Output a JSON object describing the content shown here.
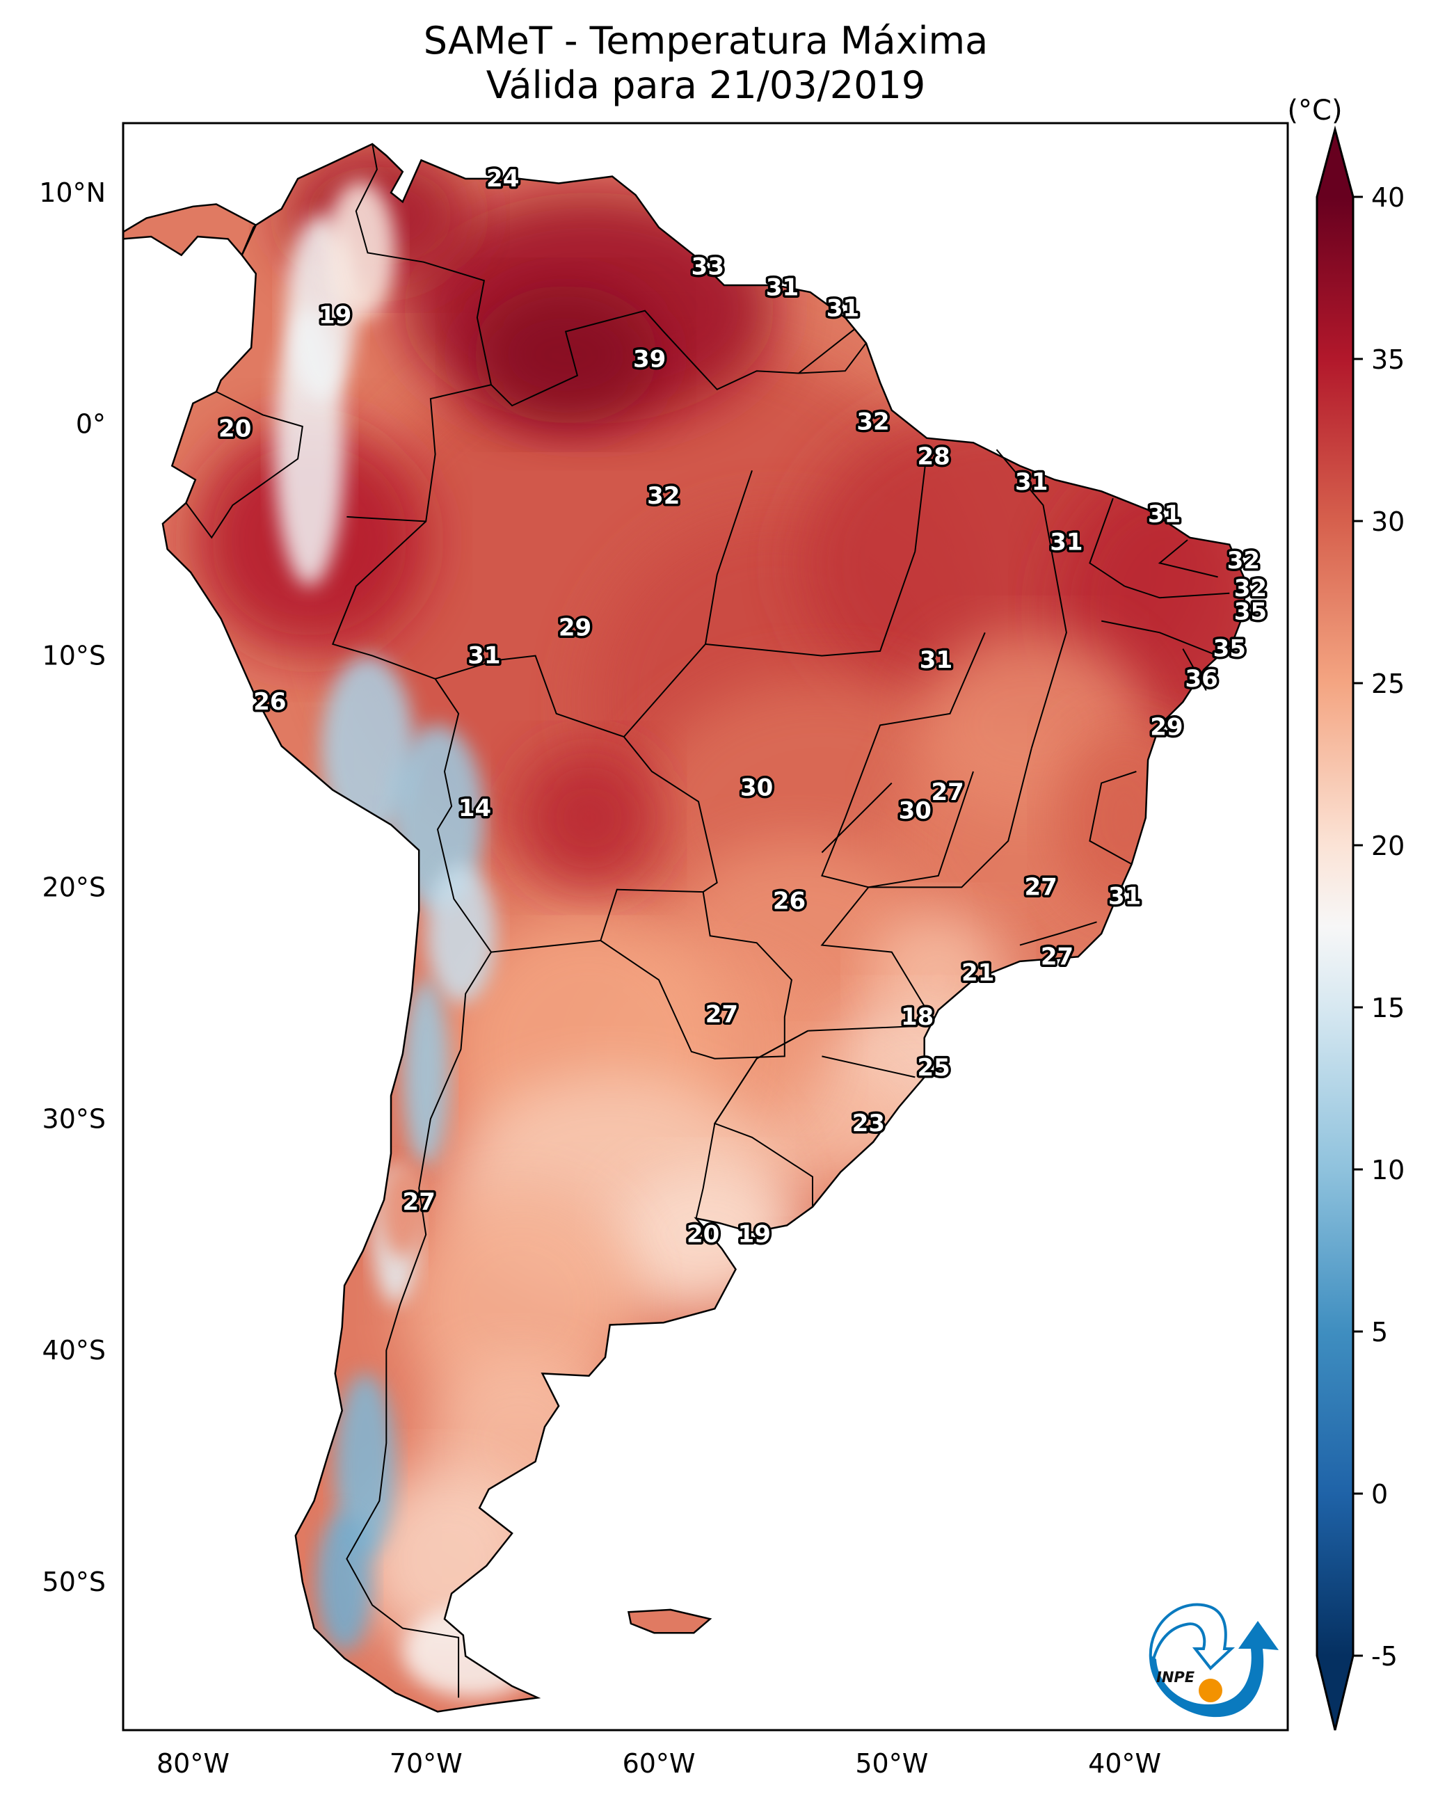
{
  "header": {
    "title_line1": "SAMeT - Temperatura Máxima",
    "title_line2": "Válida para 21/03/2019"
  },
  "logo": {
    "text": "INPE",
    "colors": {
      "blue": "#0a7abf",
      "orange": "#f39200"
    }
  },
  "chart_data": {
    "type": "heatmap",
    "title": "SAMeT - Temperatura Máxima",
    "subtitle": "Válida para 21/03/2019",
    "variable": "Maximum temperature",
    "units": "(°C)",
    "region": "South America",
    "x_axis": {
      "label": "",
      "range": [
        -83,
        -33
      ],
      "ticks": [
        -80,
        -70,
        -60,
        -50,
        -40
      ],
      "tick_labels": [
        "80°W",
        "70°W",
        "60°W",
        "50°W",
        "40°W"
      ]
    },
    "y_axis": {
      "label": "",
      "range": [
        -56.4,
        13.0
      ],
      "ticks": [
        10,
        0,
        -10,
        -20,
        -30,
        -40,
        -50
      ],
      "tick_labels": [
        "10°N",
        "0°",
        "10°S",
        "20°S",
        "30°S",
        "40°S",
        "50°S"
      ]
    },
    "colorbar": {
      "label": "(°C)",
      "cmap": "RdBu_r",
      "range": [
        -5,
        40
      ],
      "extend": "both",
      "ticks": [
        -5,
        0,
        5,
        10,
        15,
        20,
        25,
        30,
        35,
        40
      ],
      "tick_labels": [
        "-5",
        "0",
        "5",
        "10",
        "15",
        "20",
        "25",
        "30",
        "35",
        "40"
      ],
      "placement": "right",
      "stops": [
        {
          "v": -5,
          "c": "#053061"
        },
        {
          "v": 0,
          "c": "#1f63a8"
        },
        {
          "v": 5,
          "c": "#3f8ec0"
        },
        {
          "v": 10,
          "c": "#8fc2dd"
        },
        {
          "v": 15,
          "c": "#d7e8f1"
        },
        {
          "v": 17.5,
          "c": "#f7f7f7"
        },
        {
          "v": 20,
          "c": "#fbe3d6"
        },
        {
          "v": 25,
          "c": "#f4a582"
        },
        {
          "v": 30,
          "c": "#d6604d"
        },
        {
          "v": 35,
          "c": "#b2182b"
        },
        {
          "v": 40,
          "c": "#67001f"
        }
      ]
    },
    "point_labels": [
      {
        "value": 24,
        "lon": -66.7,
        "lat": 10.6
      },
      {
        "value": 33,
        "lon": -57.9,
        "lat": 6.8
      },
      {
        "value": 31,
        "lon": -54.7,
        "lat": 5.9
      },
      {
        "value": 31,
        "lon": -52.1,
        "lat": 5.0
      },
      {
        "value": 19,
        "lon": -73.9,
        "lat": 4.7
      },
      {
        "value": 39,
        "lon": -60.4,
        "lat": 2.8
      },
      {
        "value": 20,
        "lon": -78.2,
        "lat": -0.2
      },
      {
        "value": 32,
        "lon": -50.8,
        "lat": 0.1
      },
      {
        "value": 28,
        "lon": -48.2,
        "lat": -1.4
      },
      {
        "value": 32,
        "lon": -59.8,
        "lat": -3.1
      },
      {
        "value": 31,
        "lon": -44.0,
        "lat": -2.5
      },
      {
        "value": 31,
        "lon": -38.3,
        "lat": -3.9
      },
      {
        "value": 31,
        "lon": -42.5,
        "lat": -5.1
      },
      {
        "value": 32,
        "lon": -34.9,
        "lat": -5.9
      },
      {
        "value": 32,
        "lon": -34.6,
        "lat": -7.1
      },
      {
        "value": 35,
        "lon": -34.6,
        "lat": -8.1
      },
      {
        "value": 29,
        "lon": -63.6,
        "lat": -8.8
      },
      {
        "value": 35,
        "lon": -35.5,
        "lat": -9.7
      },
      {
        "value": 31,
        "lon": -67.5,
        "lat": -10.0
      },
      {
        "value": 31,
        "lon": -48.1,
        "lat": -10.2
      },
      {
        "value": 36,
        "lon": -36.7,
        "lat": -11.0
      },
      {
        "value": 26,
        "lon": -76.7,
        "lat": -12.0
      },
      {
        "value": 29,
        "lon": -38.2,
        "lat": -13.1
      },
      {
        "value": 30,
        "lon": -55.8,
        "lat": -15.7
      },
      {
        "value": 27,
        "lon": -47.6,
        "lat": -15.9
      },
      {
        "value": 14,
        "lon": -67.9,
        "lat": -16.6
      },
      {
        "value": 30,
        "lon": -49.0,
        "lat": -16.7
      },
      {
        "value": 27,
        "lon": -43.6,
        "lat": -20.0
      },
      {
        "value": 26,
        "lon": -54.4,
        "lat": -20.6
      },
      {
        "value": 31,
        "lon": -40.0,
        "lat": -20.4
      },
      {
        "value": 27,
        "lon": -42.9,
        "lat": -23.0
      },
      {
        "value": 21,
        "lon": -46.3,
        "lat": -23.7
      },
      {
        "value": 27,
        "lon": -57.3,
        "lat": -25.5
      },
      {
        "value": 18,
        "lon": -48.9,
        "lat": -25.6
      },
      {
        "value": 25,
        "lon": -48.2,
        "lat": -27.8
      },
      {
        "value": 23,
        "lon": -51.0,
        "lat": -30.2
      },
      {
        "value": 27,
        "lon": -70.3,
        "lat": -33.6
      },
      {
        "value": 20,
        "lon": -58.1,
        "lat": -35.0
      },
      {
        "value": 19,
        "lon": -55.9,
        "lat": -35.0
      }
    ]
  }
}
